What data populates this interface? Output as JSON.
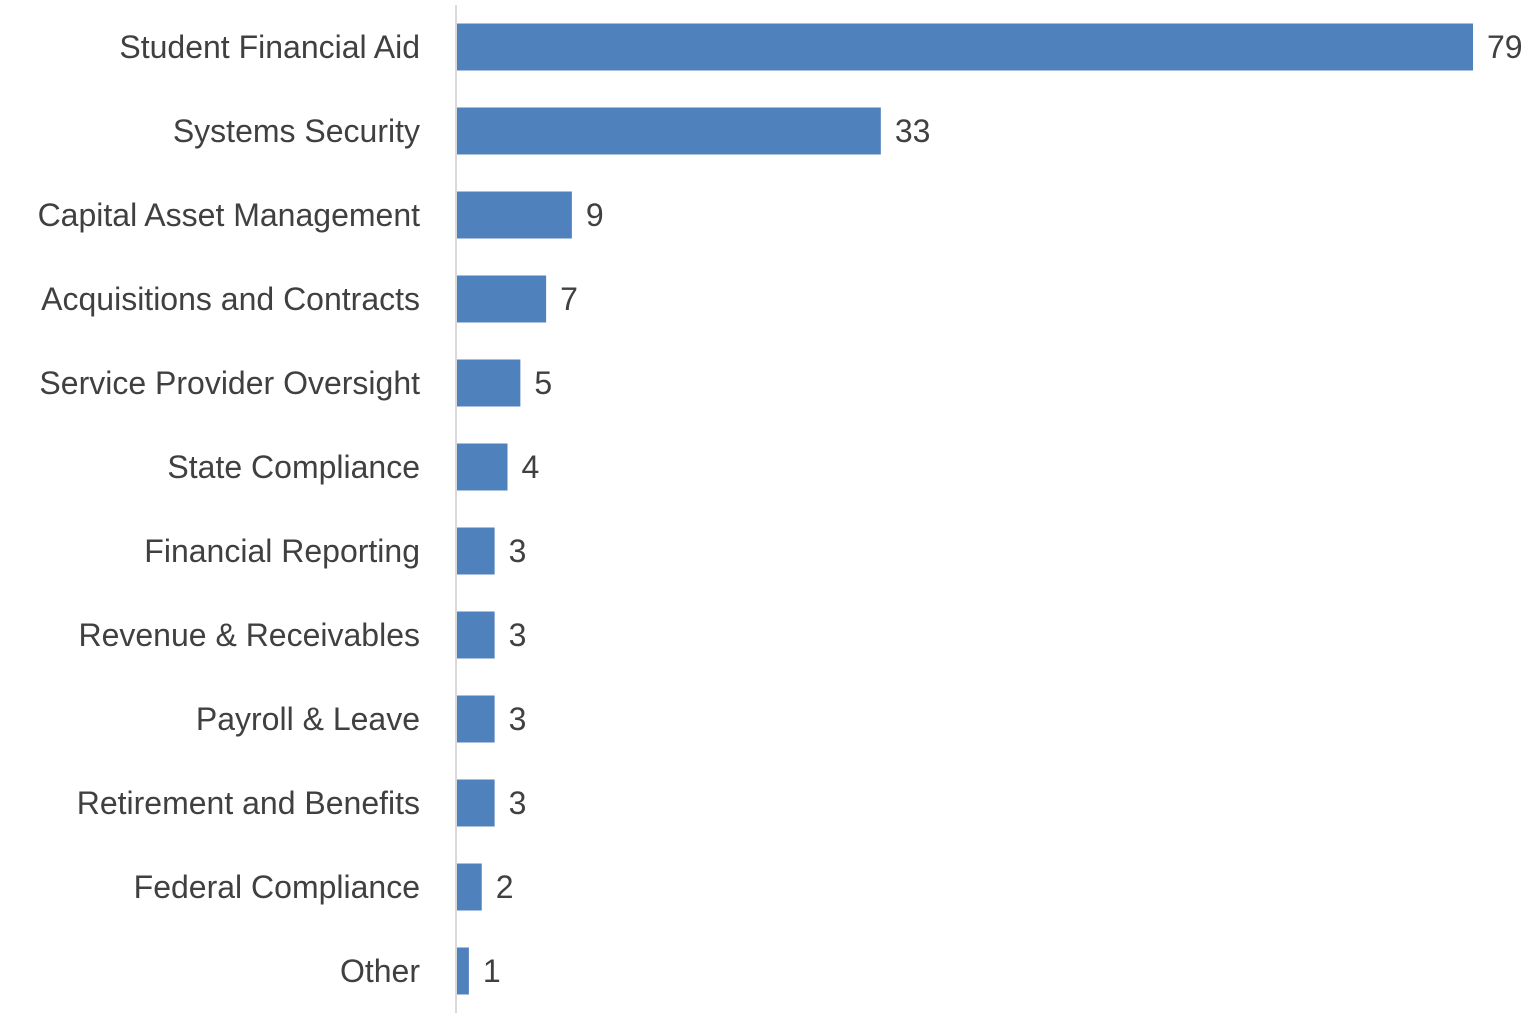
{
  "chart_data": {
    "type": "bar",
    "orientation": "horizontal",
    "title": "",
    "xlabel": "",
    "ylabel": "",
    "categories": [
      "Student Financial Aid",
      "Systems Security",
      "Capital Asset Management",
      "Acquisitions and Contracts",
      "Service Provider Oversight",
      "State Compliance",
      "Financial Reporting",
      "Revenue & Receivables",
      "Payroll & Leave",
      "Retirement and Benefits",
      "Federal Compliance",
      "Other"
    ],
    "values": [
      79,
      33,
      9,
      7,
      5,
      4,
      3,
      3,
      3,
      3,
      2,
      1
    ],
    "xlim": [
      0,
      79
    ],
    "grid": false,
    "legend": "none",
    "data_labels": true,
    "colors": {
      "bar": "#4f81bd",
      "text": "#404040",
      "axis": "#d9d9d9"
    }
  }
}
